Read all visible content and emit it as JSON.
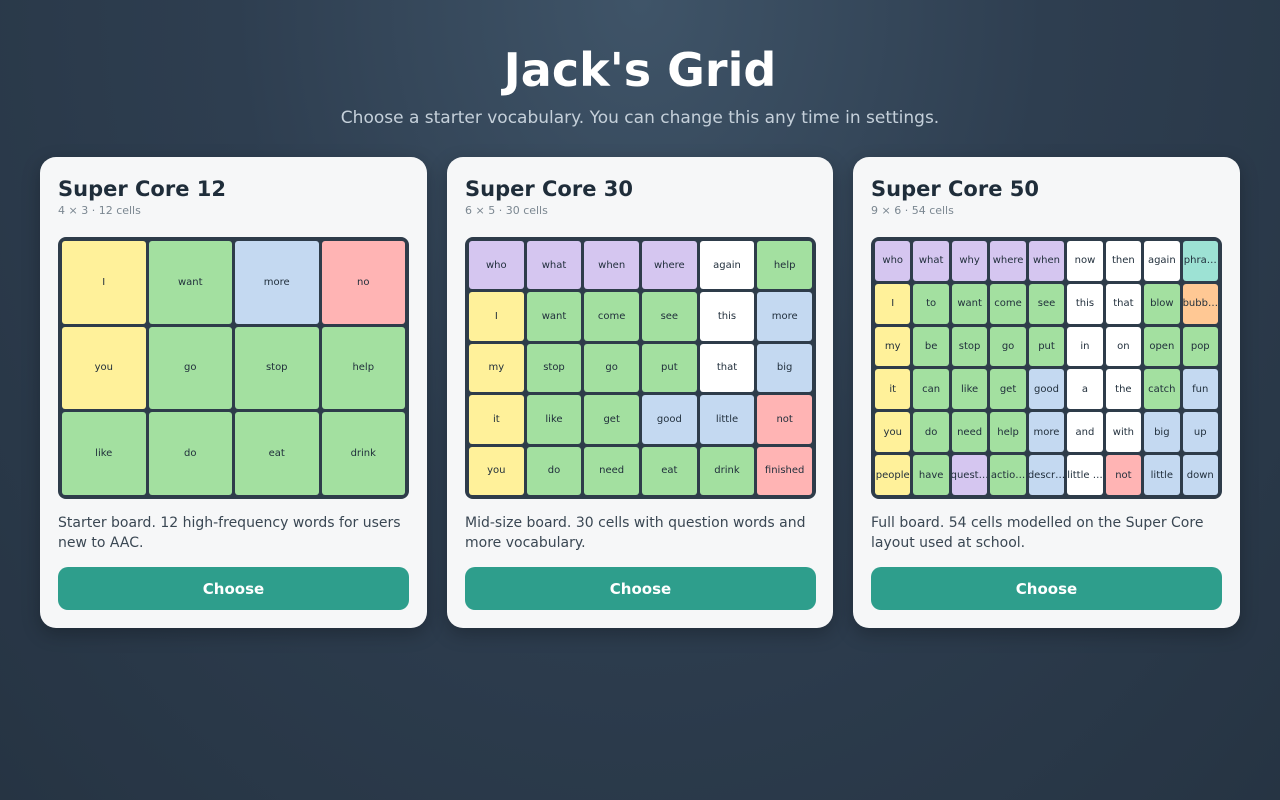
{
  "page": {
    "title": "Jack's Grid",
    "subtitle": "Choose a starter vocabulary. You can change this any time in settings."
  },
  "colors": {
    "yellow": "#fff19a",
    "green": "#a3e0a0",
    "blue": "#c4d9f1",
    "red": "#ffb4b4",
    "purple": "#d5c6f0",
    "white": "#ffffff",
    "teal": "#9de2d4",
    "orange": "#ffc894",
    "button": "#2e9e8c"
  },
  "boards": [
    {
      "title": "Super Core 12",
      "meta": "4 × 3 · 12 cells",
      "cols": 4,
      "rows": 3,
      "description": "Starter board. 12 high-frequency words for users new to AAC.",
      "button_label": "Choose",
      "cells": [
        {
          "label": "I",
          "color": "yellow"
        },
        {
          "label": "want",
          "color": "green"
        },
        {
          "label": "more",
          "color": "blue"
        },
        {
          "label": "no",
          "color": "red"
        },
        {
          "label": "you",
          "color": "yellow"
        },
        {
          "label": "go",
          "color": "green"
        },
        {
          "label": "stop",
          "color": "green"
        },
        {
          "label": "help",
          "color": "green"
        },
        {
          "label": "like",
          "color": "green"
        },
        {
          "label": "do",
          "color": "green"
        },
        {
          "label": "eat",
          "color": "green"
        },
        {
          "label": "drink",
          "color": "green"
        }
      ]
    },
    {
      "title": "Super Core 30",
      "meta": "6 × 5 · 30 cells",
      "cols": 6,
      "rows": 5,
      "description": "Mid-size board. 30 cells with question words and more vocabulary.",
      "button_label": "Choose",
      "cells": [
        {
          "label": "who",
          "color": "purple"
        },
        {
          "label": "what",
          "color": "purple"
        },
        {
          "label": "when",
          "color": "purple"
        },
        {
          "label": "where",
          "color": "purple"
        },
        {
          "label": "again",
          "color": "white"
        },
        {
          "label": "help",
          "color": "green"
        },
        {
          "label": "I",
          "color": "yellow"
        },
        {
          "label": "want",
          "color": "green"
        },
        {
          "label": "come",
          "color": "green"
        },
        {
          "label": "see",
          "color": "green"
        },
        {
          "label": "this",
          "color": "white"
        },
        {
          "label": "more",
          "color": "blue"
        },
        {
          "label": "my",
          "color": "yellow"
        },
        {
          "label": "stop",
          "color": "green"
        },
        {
          "label": "go",
          "color": "green"
        },
        {
          "label": "put",
          "color": "green"
        },
        {
          "label": "that",
          "color": "white"
        },
        {
          "label": "big",
          "color": "blue"
        },
        {
          "label": "it",
          "color": "yellow"
        },
        {
          "label": "like",
          "color": "green"
        },
        {
          "label": "get",
          "color": "green"
        },
        {
          "label": "good",
          "color": "blue"
        },
        {
          "label": "little",
          "color": "blue"
        },
        {
          "label": "not",
          "color": "red"
        },
        {
          "label": "you",
          "color": "yellow"
        },
        {
          "label": "do",
          "color": "green"
        },
        {
          "label": "need",
          "color": "green"
        },
        {
          "label": "eat",
          "color": "green"
        },
        {
          "label": "drink",
          "color": "green"
        },
        {
          "label": "finished",
          "color": "red"
        }
      ]
    },
    {
      "title": "Super Core 50",
      "meta": "9 × 6 · 54 cells",
      "cols": 9,
      "rows": 6,
      "description": "Full board. 54 cells modelled on the Super Core layout used at school.",
      "button_label": "Choose",
      "cells": [
        {
          "label": "who",
          "color": "purple"
        },
        {
          "label": "what",
          "color": "purple"
        },
        {
          "label": "why",
          "color": "purple"
        },
        {
          "label": "where",
          "color": "purple"
        },
        {
          "label": "when",
          "color": "purple"
        },
        {
          "label": "now",
          "color": "white"
        },
        {
          "label": "then",
          "color": "white"
        },
        {
          "label": "again",
          "color": "white"
        },
        {
          "label": "phra…",
          "color": "teal"
        },
        {
          "label": "I",
          "color": "yellow"
        },
        {
          "label": "to",
          "color": "green"
        },
        {
          "label": "want",
          "color": "green"
        },
        {
          "label": "come",
          "color": "green"
        },
        {
          "label": "see",
          "color": "green"
        },
        {
          "label": "this",
          "color": "white"
        },
        {
          "label": "that",
          "color": "white"
        },
        {
          "label": "blow",
          "color": "green"
        },
        {
          "label": "bubb…",
          "color": "orange"
        },
        {
          "label": "my",
          "color": "yellow"
        },
        {
          "label": "be",
          "color": "green"
        },
        {
          "label": "stop",
          "color": "green"
        },
        {
          "label": "go",
          "color": "green"
        },
        {
          "label": "put",
          "color": "green"
        },
        {
          "label": "in",
          "color": "white"
        },
        {
          "label": "on",
          "color": "white"
        },
        {
          "label": "open",
          "color": "green"
        },
        {
          "label": "pop",
          "color": "green"
        },
        {
          "label": "it",
          "color": "yellow"
        },
        {
          "label": "can",
          "color": "green"
        },
        {
          "label": "like",
          "color": "green"
        },
        {
          "label": "get",
          "color": "green"
        },
        {
          "label": "good",
          "color": "blue"
        },
        {
          "label": "a",
          "color": "white"
        },
        {
          "label": "the",
          "color": "white"
        },
        {
          "label": "catch",
          "color": "green"
        },
        {
          "label": "fun",
          "color": "blue"
        },
        {
          "label": "you",
          "color": "yellow"
        },
        {
          "label": "do",
          "color": "green"
        },
        {
          "label": "need",
          "color": "green"
        },
        {
          "label": "help",
          "color": "green"
        },
        {
          "label": "more",
          "color": "blue"
        },
        {
          "label": "and",
          "color": "white"
        },
        {
          "label": "with",
          "color": "white"
        },
        {
          "label": "big",
          "color": "blue"
        },
        {
          "label": "up",
          "color": "blue"
        },
        {
          "label": "people",
          "color": "yellow"
        },
        {
          "label": "have",
          "color": "green"
        },
        {
          "label": "quest…",
          "color": "purple"
        },
        {
          "label": "actio…",
          "color": "green"
        },
        {
          "label": "descr…",
          "color": "blue"
        },
        {
          "label": "little …",
          "color": "white"
        },
        {
          "label": "not",
          "color": "red"
        },
        {
          "label": "little",
          "color": "blue"
        },
        {
          "label": "down",
          "color": "blue"
        }
      ]
    }
  ]
}
